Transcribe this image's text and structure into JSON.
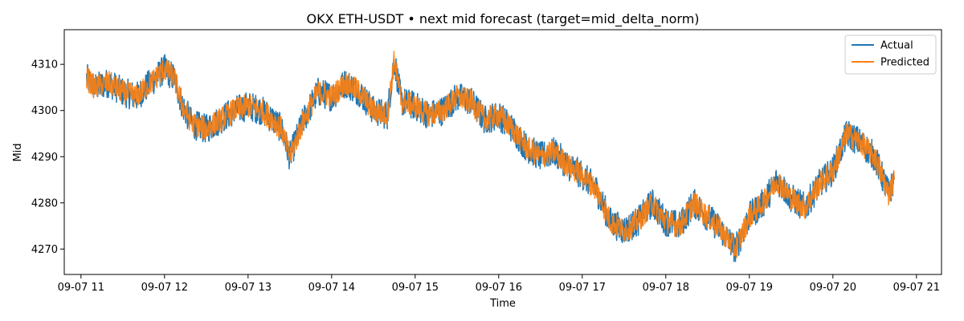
{
  "chart_data": {
    "type": "line",
    "title": "OKX ETH-USDT • next mid forecast (target=mid_delta_norm)",
    "xlabel": "Time",
    "ylabel": "Mid",
    "x_range": [
      "09-07 10:48",
      "09-07 21:18"
    ],
    "ylim": [
      4264.5,
      4317.5
    ],
    "x_ticks": [
      {
        "label": "09-07 11",
        "t": "09-07 11:00"
      },
      {
        "label": "09-07 12",
        "t": "09-07 12:00"
      },
      {
        "label": "09-07 13",
        "t": "09-07 13:00"
      },
      {
        "label": "09-07 14",
        "t": "09-07 14:00"
      },
      {
        "label": "09-07 15",
        "t": "09-07 15:00"
      },
      {
        "label": "09-07 16",
        "t": "09-07 16:00"
      },
      {
        "label": "09-07 17",
        "t": "09-07 17:00"
      },
      {
        "label": "09-07 18",
        "t": "09-07 18:00"
      },
      {
        "label": "09-07 19",
        "t": "09-07 19:00"
      },
      {
        "label": "09-07 20",
        "t": "09-07 20:00"
      },
      {
        "label": "09-07 21",
        "t": "09-07 21:00"
      }
    ],
    "y_ticks": [
      4270,
      4280,
      4290,
      4300,
      4310
    ],
    "grid": false,
    "legend_position": "top-right",
    "series": [
      {
        "name": "Actual",
        "color": "#1f77b4",
        "x": [
          "09-07 11:04",
          "09-07 11:10",
          "09-07 11:20",
          "09-07 11:30",
          "09-07 11:40",
          "09-07 11:50",
          "09-07 12:00",
          "09-07 12:07",
          "09-07 12:13",
          "09-07 12:20",
          "09-07 12:30",
          "09-07 12:40",
          "09-07 12:50",
          "09-07 13:00",
          "09-07 13:10",
          "09-07 13:18",
          "09-07 13:24",
          "09-07 13:30",
          "09-07 13:40",
          "09-07 13:50",
          "09-07 14:00",
          "09-07 14:10",
          "09-07 14:20",
          "09-07 14:30",
          "09-07 14:40",
          "09-07 14:45",
          "09-07 14:50",
          "09-07 15:00",
          "09-07 15:10",
          "09-07 15:20",
          "09-07 15:30",
          "09-07 15:40",
          "09-07 15:50",
          "09-07 16:00",
          "09-07 16:10",
          "09-07 16:20",
          "09-07 16:30",
          "09-07 16:40",
          "09-07 16:50",
          "09-07 17:00",
          "09-07 17:10",
          "09-07 17:20",
          "09-07 17:30",
          "09-07 17:40",
          "09-07 17:50",
          "09-07 18:00",
          "09-07 18:10",
          "09-07 18:20",
          "09-07 18:30",
          "09-07 18:40",
          "09-07 18:50",
          "09-07 19:00",
          "09-07 19:10",
          "09-07 19:20",
          "09-07 19:30",
          "09-07 19:40",
          "09-07 19:50",
          "09-07 20:00",
          "09-07 20:10",
          "09-07 20:20",
          "09-07 20:30",
          "09-07 20:40",
          "09-07 20:44"
        ],
        "y": [
          4307,
          4305,
          4306,
          4304,
          4303,
          4306,
          4309,
          4307,
          4301,
          4297,
          4296,
          4298,
          4300,
          4301,
          4300,
          4298,
          4296,
          4290,
          4298,
          4304,
          4303,
          4306,
          4304,
          4300,
          4299,
          4311,
          4302,
          4301,
          4299,
          4300,
          4303,
          4302,
          4298,
          4299,
          4296,
          4292,
          4290,
          4291,
          4288,
          4286,
          4283,
          4276,
          4274,
          4276,
          4280,
          4276,
          4275,
          4280,
          4277,
          4274,
          4270,
          4277,
          4280,
          4285,
          4281,
          4279,
          4284,
          4287,
          4295,
          4293,
          4290,
          4282,
          4285
        ]
      },
      {
        "name": "Predicted",
        "color": "#ff7f0e",
        "x": [
          "09-07 11:04",
          "09-07 11:10",
          "09-07 11:20",
          "09-07 11:30",
          "09-07 11:40",
          "09-07 11:50",
          "09-07 12:00",
          "09-07 12:07",
          "09-07 12:13",
          "09-07 12:20",
          "09-07 12:30",
          "09-07 12:40",
          "09-07 12:50",
          "09-07 13:00",
          "09-07 13:10",
          "09-07 13:18",
          "09-07 13:24",
          "09-07 13:30",
          "09-07 13:40",
          "09-07 13:50",
          "09-07 14:00",
          "09-07 14:10",
          "09-07 14:20",
          "09-07 14:30",
          "09-07 14:40",
          "09-07 14:45",
          "09-07 14:50",
          "09-07 15:00",
          "09-07 15:10",
          "09-07 15:20",
          "09-07 15:30",
          "09-07 15:40",
          "09-07 15:50",
          "09-07 16:00",
          "09-07 16:10",
          "09-07 16:20",
          "09-07 16:30",
          "09-07 16:40",
          "09-07 16:50",
          "09-07 17:00",
          "09-07 17:10",
          "09-07 17:20",
          "09-07 17:30",
          "09-07 17:40",
          "09-07 17:50",
          "09-07 18:00",
          "09-07 18:10",
          "09-07 18:20",
          "09-07 18:30",
          "09-07 18:40",
          "09-07 18:50",
          "09-07 19:00",
          "09-07 19:10",
          "09-07 19:20",
          "09-07 19:30",
          "09-07 19:40",
          "09-07 19:50",
          "09-07 20:00",
          "09-07 20:10",
          "09-07 20:20",
          "09-07 20:30",
          "09-07 20:40",
          "09-07 20:44"
        ],
        "y": [
          4307,
          4305,
          4306,
          4304,
          4303,
          4306,
          4309,
          4307,
          4301,
          4297,
          4296,
          4298,
          4300,
          4301,
          4300,
          4298,
          4296,
          4290,
          4298,
          4304,
          4303,
          4306,
          4304,
          4300,
          4299,
          4311,
          4302,
          4301,
          4299,
          4300,
          4303,
          4302,
          4298,
          4299,
          4296,
          4292,
          4290,
          4291,
          4288,
          4286,
          4283,
          4276,
          4274,
          4276,
          4280,
          4276,
          4275,
          4280,
          4277,
          4274,
          4270,
          4277,
          4280,
          4285,
          4281,
          4279,
          4284,
          4287,
          4295,
          4293,
          4290,
          4282,
          4285
        ]
      }
    ]
  }
}
